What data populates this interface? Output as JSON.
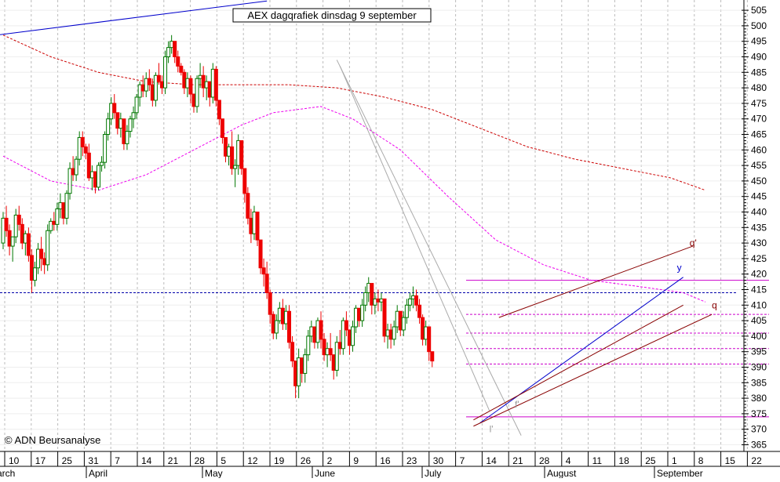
{
  "chart_data": {
    "type": "candlestick",
    "title": "AEX dagqrafiek dinsdag 9 september",
    "copyright": "© ADN Beursanalyse",
    "ylim": [
      365,
      505
    ],
    "yticks": [
      365,
      370,
      375,
      380,
      385,
      390,
      395,
      400,
      405,
      410,
      415,
      420,
      425,
      430,
      435,
      440,
      445,
      450,
      455,
      460,
      465,
      470,
      475,
      480,
      485,
      490,
      495,
      500,
      505
    ],
    "x_day_labels": [
      "10",
      "17",
      "25",
      "31",
      "7",
      "14",
      "21",
      "28",
      "5",
      "12",
      "19",
      "26",
      "2",
      "9",
      "16",
      "23",
      "30",
      "7",
      "14",
      "21",
      "28",
      "4",
      "11",
      "18",
      "25",
      "1",
      "8",
      "15",
      "22"
    ],
    "x_month_labels": [
      "arch",
      "April",
      "May",
      "June",
      "July",
      "August",
      "September"
    ],
    "colors": {
      "up": "#007700",
      "down": "#ee0000",
      "grid": "#bbbbbb",
      "ma_short": "#ee00ee",
      "ma_long": "#cc0000",
      "channel_blue": "#0000cc",
      "channel_dark": "#880000",
      "support": "#cc00cc",
      "ref_line": "#0000aa"
    },
    "series_ohlc": [
      [
        430,
        440,
        428,
        438
      ],
      [
        438,
        442,
        432,
        434
      ],
      [
        434,
        436,
        426,
        429
      ],
      [
        429,
        432,
        424,
        432
      ],
      [
        432,
        441,
        430,
        439
      ],
      [
        439,
        442,
        434,
        436
      ],
      [
        436,
        438,
        428,
        430
      ],
      [
        430,
        434,
        426,
        433
      ],
      [
        433,
        435,
        424,
        426
      ],
      [
        426,
        428,
        414,
        418
      ],
      [
        418,
        424,
        416,
        422
      ],
      [
        422,
        430,
        420,
        428
      ],
      [
        428,
        432,
        421,
        425
      ],
      [
        425,
        427,
        420,
        423
      ],
      [
        423,
        436,
        421,
        434
      ],
      [
        434,
        438,
        433,
        437
      ],
      [
        437,
        440,
        434,
        436
      ],
      [
        436,
        443,
        434,
        441
      ],
      [
        441,
        446,
        438,
        443
      ],
      [
        443,
        441,
        436,
        438
      ],
      [
        438,
        447,
        436,
        446
      ],
      [
        446,
        456,
        444,
        454
      ],
      [
        454,
        458,
        450,
        452
      ],
      [
        452,
        458,
        450,
        457
      ],
      [
        457,
        466,
        455,
        464
      ],
      [
        464,
        466,
        458,
        461
      ],
      [
        461,
        462,
        457,
        459
      ],
      [
        459,
        462,
        450,
        451
      ],
      [
        451,
        455,
        447,
        453
      ],
      [
        453,
        452,
        446,
        448
      ],
      [
        448,
        456,
        447,
        455
      ],
      [
        455,
        458,
        453,
        456
      ],
      [
        456,
        466,
        454,
        465
      ],
      [
        465,
        472,
        463,
        470
      ],
      [
        470,
        477,
        468,
        475
      ],
      [
        475,
        478,
        470,
        472
      ],
      [
        472,
        471,
        465,
        467
      ],
      [
        467,
        472,
        464,
        470
      ],
      [
        470,
        468,
        460,
        462
      ],
      [
        462,
        468,
        460,
        466
      ],
      [
        466,
        471,
        464,
        470
      ],
      [
        470,
        474,
        467,
        472
      ],
      [
        472,
        478,
        470,
        477
      ],
      [
        477,
        482,
        474,
        481
      ],
      [
        481,
        484,
        477,
        479
      ],
      [
        479,
        485,
        477,
        483
      ],
      [
        483,
        486,
        479,
        481
      ],
      [
        481,
        483,
        474,
        476
      ],
      [
        476,
        485,
        474,
        484
      ],
      [
        484,
        488,
        481,
        482
      ],
      [
        482,
        484,
        478,
        480
      ],
      [
        480,
        492,
        478,
        490
      ],
      [
        490,
        495,
        488,
        493
      ],
      [
        493,
        497,
        491,
        495
      ],
      [
        495,
        494,
        488,
        490
      ],
      [
        490,
        492,
        485,
        487
      ],
      [
        487,
        488,
        484,
        485
      ],
      [
        485,
        486,
        478,
        480
      ],
      [
        480,
        485,
        477,
        483
      ],
      [
        483,
        484,
        475,
        478
      ],
      [
        478,
        478,
        472,
        474
      ],
      [
        474,
        484,
        472,
        483
      ],
      [
        483,
        488,
        480,
        484
      ],
      [
        484,
        487,
        477,
        480
      ],
      [
        480,
        484,
        476,
        482
      ],
      [
        482,
        481,
        474,
        477
      ],
      [
        477,
        488,
        475,
        486
      ],
      [
        486,
        487,
        474,
        476
      ],
      [
        476,
        474,
        468,
        470
      ],
      [
        470,
        470,
        462,
        464
      ],
      [
        464,
        464,
        456,
        458
      ],
      [
        458,
        462,
        455,
        461
      ],
      [
        461,
        466,
        452,
        454
      ],
      [
        454,
        457,
        448,
        455
      ],
      [
        455,
        465,
        452,
        463
      ],
      [
        463,
        459,
        452,
        454
      ],
      [
        454,
        450,
        443,
        446
      ],
      [
        446,
        448,
        436,
        438
      ],
      [
        438,
        441,
        430,
        433
      ],
      [
        433,
        442,
        431,
        440
      ],
      [
        440,
        437,
        429,
        431
      ],
      [
        431,
        430,
        420,
        422
      ],
      [
        422,
        425,
        416,
        420
      ],
      [
        420,
        424,
        412,
        414
      ],
      [
        414,
        415,
        404,
        407
      ],
      [
        407,
        408,
        399,
        401
      ],
      [
        401,
        407,
        399,
        405
      ],
      [
        405,
        411,
        404,
        409
      ],
      [
        409,
        412,
        402,
        404
      ],
      [
        404,
        410,
        402,
        408
      ],
      [
        408,
        410,
        396,
        398
      ],
      [
        398,
        400,
        390,
        392
      ],
      [
        392,
        389,
        380,
        384
      ],
      [
        384,
        396,
        380,
        393
      ],
      [
        393,
        392,
        385,
        388
      ],
      [
        388,
        396,
        385,
        394
      ],
      [
        394,
        402,
        392,
        400
      ],
      [
        400,
        405,
        398,
        403
      ],
      [
        403,
        402,
        396,
        398
      ],
      [
        398,
        406,
        396,
        405
      ],
      [
        405,
        408,
        396,
        399
      ],
      [
        399,
        401,
        392,
        394
      ],
      [
        394,
        398,
        390,
        396
      ],
      [
        396,
        401,
        392,
        394
      ],
      [
        394,
        392,
        386,
        389
      ],
      [
        389,
        400,
        387,
        398
      ],
      [
        398,
        402,
        394,
        396
      ],
      [
        396,
        406,
        394,
        405
      ],
      [
        405,
        408,
        400,
        402
      ],
      [
        402,
        400,
        394,
        397
      ],
      [
        397,
        405,
        395,
        403
      ],
      [
        403,
        410,
        401,
        409
      ],
      [
        409,
        408,
        403,
        405
      ],
      [
        405,
        412,
        403,
        410
      ],
      [
        410,
        416,
        408,
        414
      ],
      [
        414,
        419,
        411,
        417
      ],
      [
        417,
        415,
        407,
        410
      ],
      [
        410,
        414,
        407,
        412
      ],
      [
        412,
        415,
        408,
        411
      ],
      [
        411,
        414,
        408,
        412
      ],
      [
        412,
        406,
        398,
        400
      ],
      [
        400,
        404,
        396,
        402
      ],
      [
        402,
        404,
        396,
        399
      ],
      [
        399,
        405,
        397,
        403
      ],
      [
        403,
        410,
        401,
        408
      ],
      [
        408,
        406,
        400,
        402
      ],
      [
        402,
        408,
        400,
        406
      ],
      [
        406,
        412,
        404,
        410
      ],
      [
        410,
        414,
        408,
        412
      ],
      [
        412,
        416,
        409,
        413
      ],
      [
        413,
        415,
        408,
        410
      ],
      [
        410,
        412,
        404,
        406
      ],
      [
        406,
        407,
        397,
        399
      ],
      [
        399,
        405,
        397,
        403
      ],
      [
        403,
        401,
        392,
        395
      ],
      [
        395,
        395,
        390,
        392
      ]
    ],
    "ma_short": [
      [
        0,
        458
      ],
      [
        15,
        450
      ],
      [
        30,
        447
      ],
      [
        45,
        452
      ],
      [
        60,
        460
      ],
      [
        75,
        468
      ],
      [
        85,
        472
      ],
      [
        100,
        474
      ],
      [
        110,
        470
      ],
      [
        125,
        460
      ],
      [
        140,
        445
      ],
      [
        155,
        431
      ],
      [
        170,
        423
      ],
      [
        185,
        418
      ],
      [
        200,
        416
      ],
      [
        214,
        414
      ],
      [
        221,
        411
      ]
    ],
    "ma_long": [
      [
        0,
        497
      ],
      [
        15,
        490
      ],
      [
        30,
        485
      ],
      [
        45,
        482
      ],
      [
        60,
        481
      ],
      [
        75,
        481
      ],
      [
        90,
        481
      ],
      [
        105,
        480
      ],
      [
        120,
        477
      ],
      [
        135,
        473
      ],
      [
        150,
        467
      ],
      [
        165,
        461
      ],
      [
        180,
        457
      ],
      [
        195,
        454
      ],
      [
        210,
        451
      ],
      [
        221,
        447
      ]
    ],
    "trendlines": [
      {
        "name": "blue-trendline-top",
        "color": "blue",
        "pts": [
          [
            -2,
            497
          ],
          [
            83,
            508
          ]
        ]
      },
      {
        "name": "grey-downtrend-outer",
        "color": "grey",
        "pts": [
          [
            105,
            489
          ],
          [
            163,
            368
          ]
        ]
      },
      {
        "name": "grey-downtrend-inner",
        "color": "grey",
        "pts": [
          [
            106,
            487
          ],
          [
            153,
            376
          ]
        ]
      },
      {
        "name": "blue-channel-line",
        "color": "blue",
        "pts": [
          [
            150,
            372
          ],
          [
            214,
            419
          ]
        ]
      },
      {
        "name": "dark-channel-lower",
        "color": "dark",
        "pts": [
          [
            148,
            371
          ],
          [
            223,
            407
          ]
        ]
      },
      {
        "name": "dark-channel-upper",
        "color": "dark",
        "pts": [
          [
            156,
            406
          ],
          [
            217,
            429
          ]
        ]
      },
      {
        "name": "dark-channel-base",
        "color": "dark",
        "pts": [
          [
            148,
            373
          ],
          [
            214,
            410
          ]
        ]
      }
    ],
    "support_levels": [
      {
        "name": "support-418",
        "y": 418,
        "style": "solid"
      },
      {
        "name": "support-407",
        "y": 407,
        "style": "dashed"
      },
      {
        "name": "support-401",
        "y": 401,
        "style": "dashed"
      },
      {
        "name": "support-396",
        "y": 396,
        "style": "dashed"
      },
      {
        "name": "support-391",
        "y": 391,
        "style": "dashed"
      },
      {
        "name": "support-374",
        "y": 374,
        "style": "solid"
      }
    ],
    "ref_level": 414,
    "annotations": [
      {
        "name": "label-q-prime",
        "text": "q'",
        "x": 216,
        "y": 429
      },
      {
        "name": "label-y",
        "text": "y",
        "x": 212,
        "y": 421
      },
      {
        "name": "label-q",
        "text": "q",
        "x": 223,
        "y": 409
      },
      {
        "name": "label-f-prime",
        "text": "f'",
        "x": 161,
        "y": 377
      },
      {
        "name": "label-l-prime",
        "text": "l'",
        "x": 153,
        "y": 369
      }
    ]
  }
}
